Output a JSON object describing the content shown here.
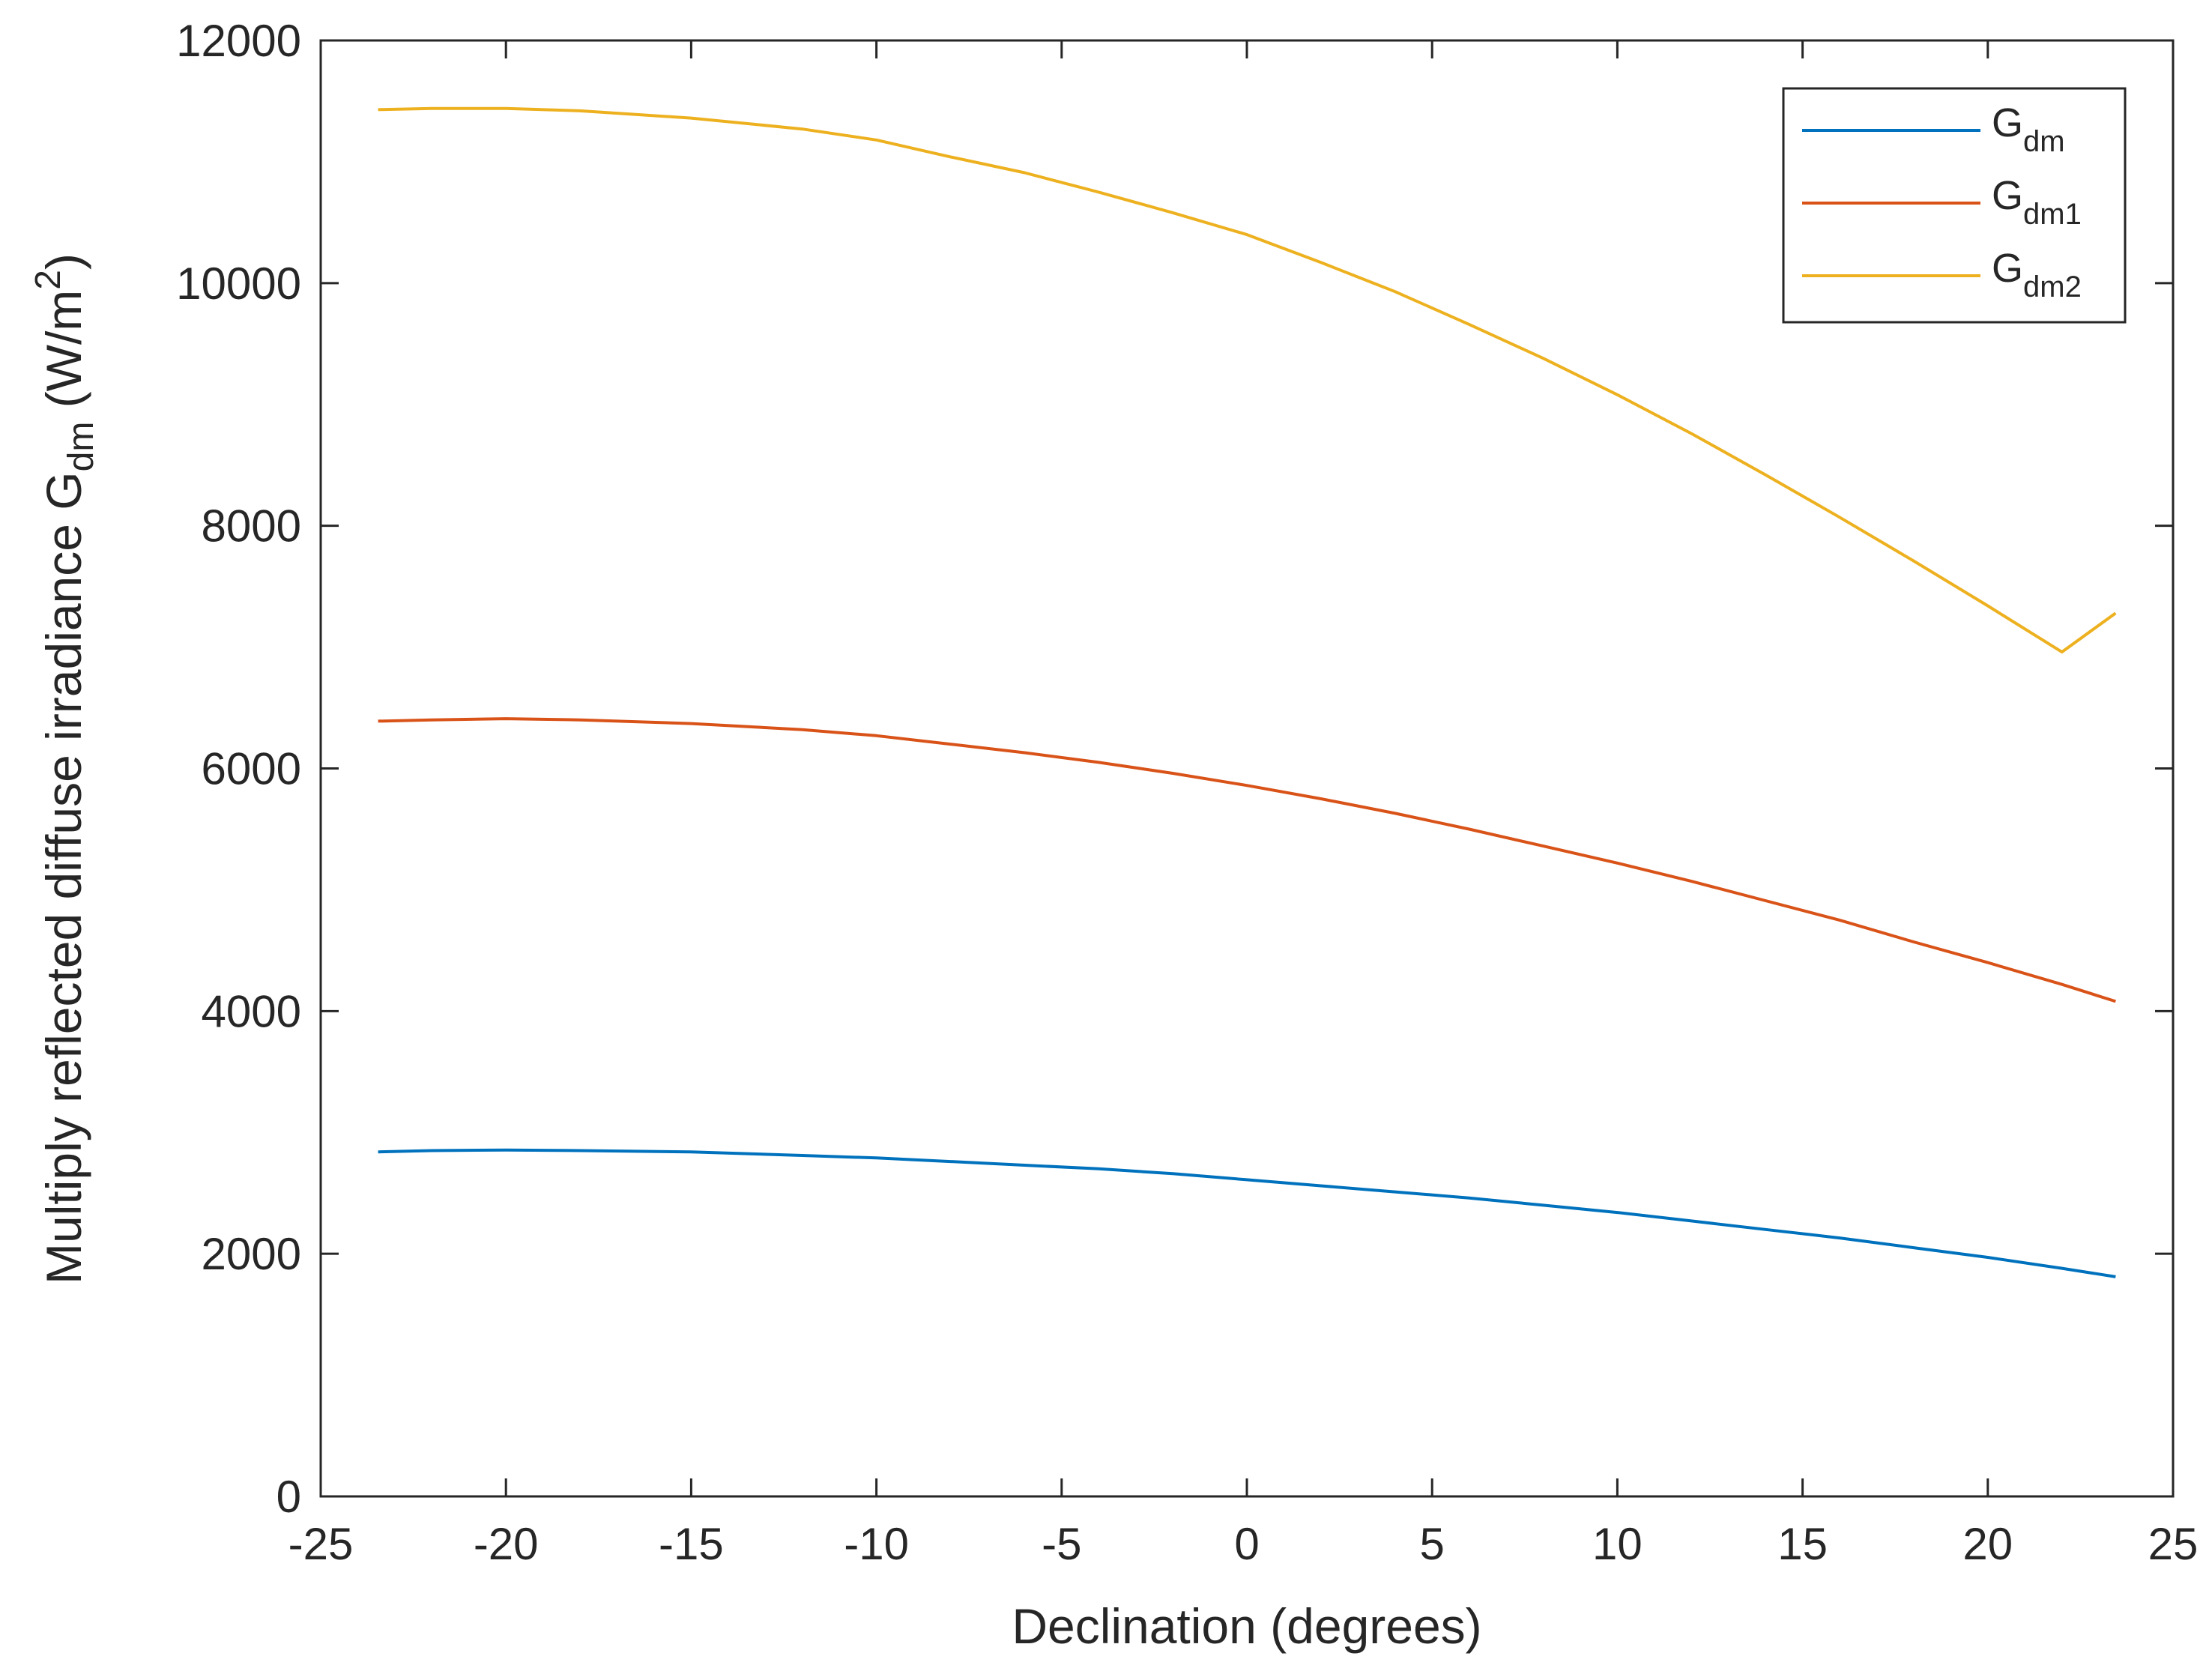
{
  "chart_data": {
    "type": "line",
    "xlabel": "Declination (degrees)",
    "ylabel": {
      "prefix": "Multiply reflected diffuse irradiance G",
      "sub": "dm",
      "unit_open": " (W/m",
      "unit_sup": "2",
      "unit_close": ")"
    },
    "xlim": [
      -25,
      25
    ],
    "ylim": [
      0,
      12000
    ],
    "x_ticks": [
      -25,
      -20,
      -15,
      -10,
      -5,
      0,
      5,
      10,
      15,
      20,
      25
    ],
    "y_ticks": [
      0,
      2000,
      4000,
      6000,
      8000,
      10000,
      12000
    ],
    "grid": false,
    "legend_position": "top-right",
    "x": [
      -23.45,
      -22,
      -20,
      -18,
      -15,
      -12,
      -10,
      -8,
      -6,
      -4,
      -2,
      0,
      2,
      4,
      6,
      8,
      10,
      12,
      14,
      16,
      18,
      20,
      22,
      23.45
    ],
    "series": [
      {
        "label": "G",
        "label_sub": "dm",
        "color": "#0072BD",
        "values": [
          2840,
          2850,
          2855,
          2850,
          2840,
          2810,
          2790,
          2760,
          2730,
          2700,
          2660,
          2610,
          2560,
          2510,
          2460,
          2400,
          2340,
          2270,
          2200,
          2130,
          2050,
          1970,
          1880,
          1810
        ]
      },
      {
        "label": "G",
        "label_sub": "dm1",
        "color": "#D95319",
        "values": [
          6390,
          6400,
          6410,
          6400,
          6370,
          6320,
          6270,
          6200,
          6130,
          6050,
          5960,
          5860,
          5750,
          5630,
          5500,
          5360,
          5220,
          5070,
          4910,
          4750,
          4570,
          4400,
          4220,
          4080
        ]
      },
      {
        "label": "G",
        "label_sub": "dm2",
        "color": "#EDB120",
        "values": [
          11430,
          11440,
          11440,
          11420,
          11360,
          11270,
          11180,
          11040,
          10910,
          10750,
          10580,
          10400,
          10170,
          9930,
          9660,
          9380,
          9080,
          8760,
          8420,
          8070,
          7710,
          7340,
          6960,
          7280
        ]
      }
    ]
  }
}
